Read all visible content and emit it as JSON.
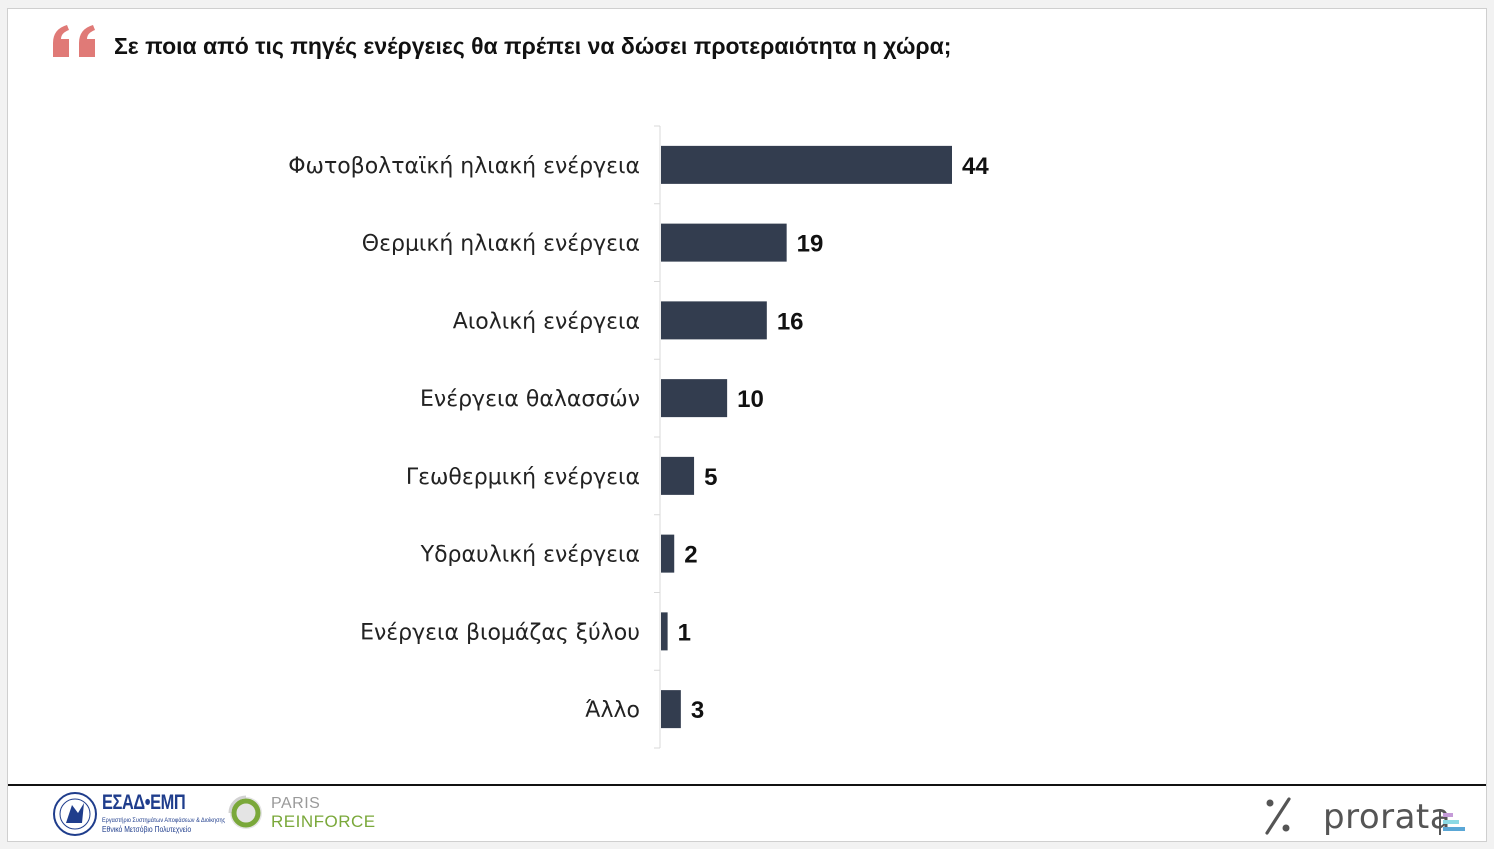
{
  "header": {
    "title": "Σε ποια από τις πηγές ενέργειες θα πρέπει να δώσει προτεραιότητα η χώρα;",
    "quote_icon": "quote-icon",
    "accent_color": "#e07a77"
  },
  "chart_data": {
    "type": "bar",
    "orientation": "horizontal",
    "categories": [
      "Φωτοβολταϊκή ηλιακή ενέργεια",
      "Θερμική ηλιακή ενέργεια",
      "Αιολική ενέργεια",
      "Ενέργεια θαλασσών",
      "Γεωθερμική ενέργεια",
      "Υδραυλική ενέργεια",
      "Ενέργεια βιομάζας ξύλου",
      "Άλλο"
    ],
    "values": [
      44,
      19,
      16,
      10,
      5,
      2,
      1,
      3
    ],
    "bar_color": "#333d4f",
    "xlim": [
      0,
      100
    ],
    "grid": false,
    "data_labels": true
  },
  "footer": {
    "logo_emp": {
      "name": "ΕΣΑΔ•ΕΜΠ",
      "line1": "Εργαστήριο Συστημάτων Αποφάσεων & Διοίκησης",
      "line2": "Εθνικό Μετσόβιο Πολυτεχνείο"
    },
    "logo_paris_reinforce": {
      "line1": "PARIS",
      "line2": "REINFORCE"
    },
    "logo_prorata": {
      "mark": "%",
      "name": "prorata"
    }
  }
}
